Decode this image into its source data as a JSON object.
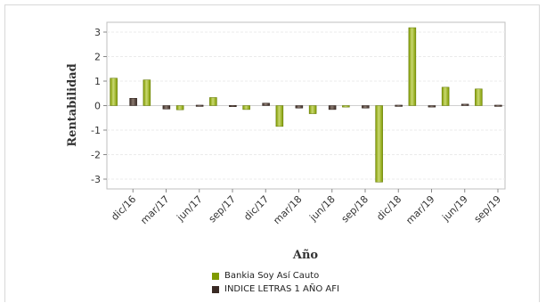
{
  "colors": {
    "series1": "#7f9a00",
    "series1_light": "#c9d870",
    "series2": "#3a2a24",
    "series2_light": "#8a7a70"
  },
  "chart_data": {
    "type": "bar",
    "xlabel": "Año",
    "ylabel": "Rentabilidad",
    "ylim": [
      -3.4,
      3.4
    ],
    "yticks": [
      -3,
      -2,
      -1,
      0,
      1,
      2,
      3
    ],
    "grid": true,
    "legend_position": "bottom",
    "tick_labels": [
      "dic/16",
      "mar/17",
      "jun/17",
      "sep/17",
      "dic/17",
      "mar/18",
      "jun/18",
      "sep/18",
      "dic/18",
      "mar/19",
      "jun/19",
      "sep/19"
    ],
    "categories": [
      "dic/16",
      "mar/17",
      "jun/17",
      "sep/17",
      "dic/17",
      "mar/18",
      "jun/18",
      "sep/18",
      "dic/18",
      "mar/19",
      "jun/19",
      "sep/19"
    ],
    "series": [
      {
        "name": "Bankia Soy Así Cauto",
        "values": [
          1.12,
          1.05,
          -0.17,
          0.33,
          -0.16,
          -0.85,
          -0.33,
          -0.06,
          -3.12,
          3.18,
          0.75,
          0.68
        ]
      },
      {
        "name": "INDICE LETRAS 1 AÑO AFI",
        "values": [
          0.3,
          -0.14,
          0.02,
          0.01,
          0.1,
          -0.1,
          -0.16,
          -0.1,
          0.02,
          -0.06,
          0.06,
          0.02
        ]
      }
    ]
  }
}
